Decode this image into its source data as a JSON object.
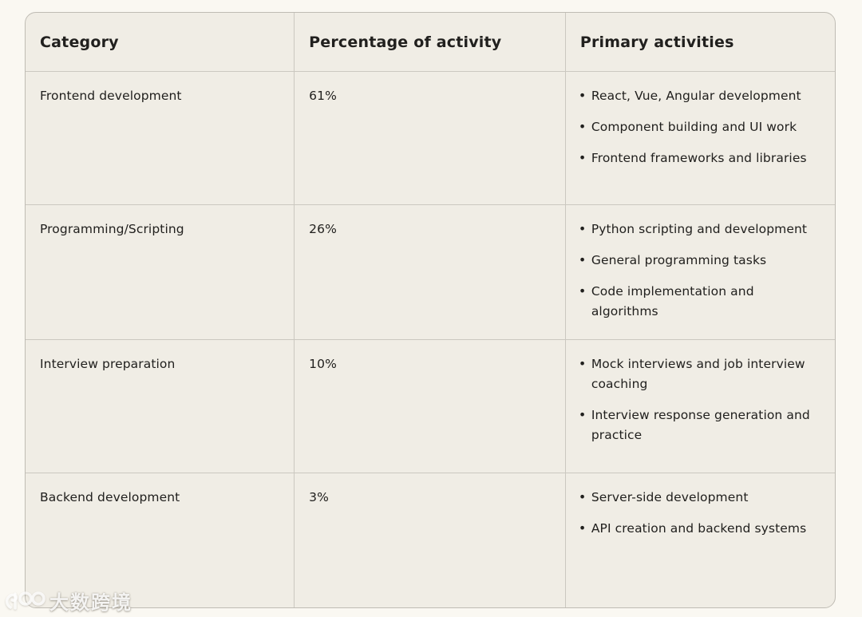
{
  "table": {
    "columns": [
      "Category",
      "Percentage of activity",
      "Primary activities"
    ],
    "rows": [
      {
        "category": "Frontend development",
        "percentage": "61%",
        "activities": [
          "React, Vue, Angular development",
          "Component building and UI work",
          "Frontend frameworks and libraries"
        ]
      },
      {
        "category": "Programming/Scripting",
        "percentage": "26%",
        "activities": [
          "Python scripting and development",
          "General programming tasks",
          "Code implementation and algorithms"
        ]
      },
      {
        "category": "Interview preparation",
        "percentage": "10%",
        "activities": [
          "Mock interviews and job interview coaching",
          "Interview response generation and practice"
        ]
      },
      {
        "category": "Backend development",
        "percentage": "3%",
        "activities": [
          "Server-side development",
          "API creation and backend systems"
        ]
      }
    ]
  },
  "chart_data": {
    "type": "table",
    "categories": [
      "Frontend development",
      "Programming/Scripting",
      "Interview preparation",
      "Backend development"
    ],
    "values": [
      61,
      26,
      10,
      3
    ],
    "value_unit": "%",
    "columns": [
      "Category",
      "Percentage of activity",
      "Primary activities"
    ]
  },
  "watermark": {
    "logo": "100",
    "text": "大数跨境"
  },
  "colors": {
    "page_background": "#FAF8F2",
    "table_background": "#F0EDE5",
    "border": "#C8C5BD",
    "text": "#21201E",
    "watermark": "#FFFFFF"
  }
}
